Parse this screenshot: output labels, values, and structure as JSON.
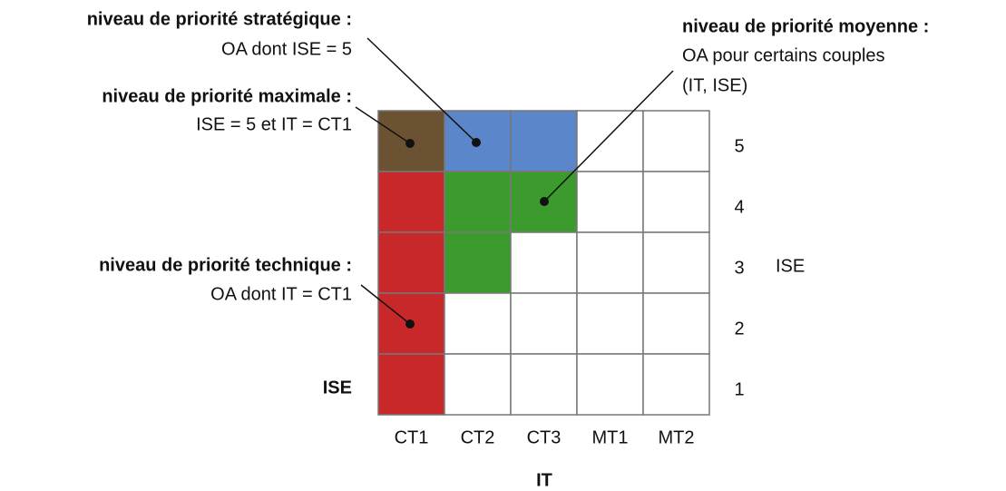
{
  "annotations": [
    {
      "title": "niveau de priorité stratégique :",
      "lines": [
        "OA dont ISE = 5"
      ]
    },
    {
      "title": "niveau de priorité maximale :",
      "lines": [
        "ISE = 5 et IT = CT1"
      ]
    },
    {
      "title": "niveau de priorité technique :",
      "lines": [
        "OA dont IT = CT1"
      ]
    },
    {
      "title": "niveau de priorité moyenne :",
      "lines": [
        "OA pour certains couples",
        "(IT, ISE)"
      ]
    }
  ],
  "grid": {
    "columns": [
      "CT1",
      "CT2",
      "CT3",
      "MT1",
      "MT2"
    ],
    "rows": [
      "5",
      "4",
      "3",
      "2",
      "1"
    ],
    "cells": [
      [
        "#6b5233",
        "#5b86c9",
        "#5b86c9",
        "#ffffff",
        "#ffffff"
      ],
      [
        "#c9282a",
        "#3b9b2c",
        "#3b9b2c",
        "#ffffff",
        "#ffffff"
      ],
      [
        "#c9282a",
        "#3b9b2c",
        "#ffffff",
        "#ffffff",
        "#ffffff"
      ],
      [
        "#c9282a",
        "#ffffff",
        "#ffffff",
        "#ffffff",
        "#ffffff"
      ],
      [
        "#c9282a",
        "#ffffff",
        "#ffffff",
        "#ffffff",
        "#ffffff"
      ]
    ],
    "x_label": "IT",
    "y_label": "ISE",
    "left_label": "ISE"
  }
}
